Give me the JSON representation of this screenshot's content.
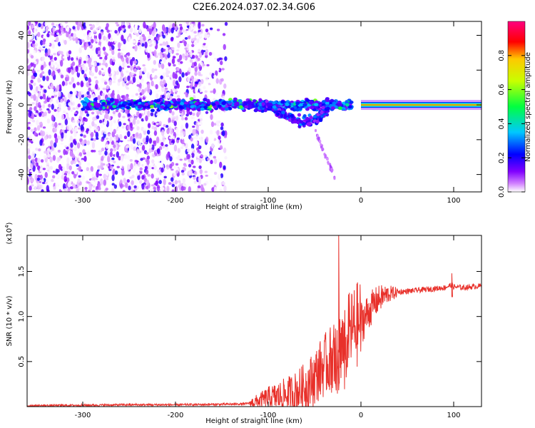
{
  "title": "C2E6.2024.037.02.34.G06",
  "colors": {
    "snr_line": "#e8302a",
    "axis": "#000000",
    "background": "#ffffff"
  },
  "chart_data": [
    {
      "type": "heatmap",
      "xlabel": "Height of straight line (km)",
      "ylabel": "Frequency (Hz)",
      "xlim": [
        -360,
        130
      ],
      "ylim": [
        -50,
        48
      ],
      "x_ticks": [
        -300,
        -200,
        -100,
        0,
        100
      ],
      "y_ticks": [
        -40,
        -20,
        0,
        20,
        40
      ],
      "colorbar": {
        "label": "Normalized spectral amplitude",
        "range": [
          0.0,
          1.0
        ],
        "ticks": [
          0.0,
          0.2,
          0.4,
          0.6,
          0.8
        ],
        "tick_labels": [
          "0.0",
          "0.2",
          "0.4",
          "0.6",
          "0.8"
        ],
        "colormap": [
          "#ffffff",
          "#d080ff",
          "#8000ff",
          "#0000ff",
          "#00c8ff",
          "#00ff40",
          "#c8ff00",
          "#ffc800",
          "#ff0000",
          "#ff0080"
        ]
      },
      "features": [
        {
          "x_range": [
            -360,
            -145
          ],
          "freq_range": [
            -50,
            48
          ],
          "amplitude": 0.1,
          "note": "scattered noise"
        },
        {
          "x_range": [
            -300,
            -10
          ],
          "freq_center": 0,
          "freq_halfwidth": 4,
          "amplitude": 0.35
        },
        {
          "x_range": [
            -110,
            -35
          ],
          "freq_center": -8,
          "freq_halfwidth": 7,
          "amplitude": 0.3
        },
        {
          "x_range": [
            -50,
            -28
          ],
          "freq_center": -30,
          "freq_halfwidth": 10,
          "amplitude": 0.15
        },
        {
          "x_range": [
            0,
            130
          ],
          "freq_center": 0,
          "freq_halfwidth": 1,
          "amplitude": 1.0
        }
      ]
    },
    {
      "type": "line",
      "xlabel": "Height of straight line (km)",
      "ylabel": "SNR (10 * v/v)",
      "y_multiplier": "(x10",
      "y_multiplier_exp": "4",
      "y_multiplier_close": ")",
      "xlim": [
        -360,
        130
      ],
      "ylim": [
        0.0,
        1.9
      ],
      "x_ticks": [
        -300,
        -200,
        -100,
        0,
        100
      ],
      "y_ticks": [
        0.5,
        1.0,
        1.5
      ],
      "y_tick_labels": [
        "0.5",
        "1.0",
        "1.5"
      ],
      "series": [
        {
          "x": [
            -360,
            -300,
            -250,
            -200,
            -150,
            -125,
            -110,
            -100,
            -90,
            -80,
            -70,
            -60,
            -50,
            -45,
            -40,
            -35,
            -30,
            -28,
            -25,
            -22,
            -20,
            -15,
            -10,
            -5,
            0,
            5,
            10,
            15,
            20,
            25,
            30,
            40,
            50,
            60,
            70,
            80,
            90,
            98,
            100,
            110,
            120,
            130
          ],
          "y": [
            0.01,
            0.015,
            0.02,
            0.02,
            0.025,
            0.03,
            0.06,
            0.1,
            0.11,
            0.13,
            0.16,
            0.22,
            0.32,
            0.4,
            0.45,
            0.5,
            0.55,
            0.6,
            0.65,
            0.7,
            0.75,
            0.8,
            0.85,
            0.9,
            0.93,
            1.0,
            1.08,
            1.15,
            1.2,
            1.23,
            1.25,
            1.27,
            1.28,
            1.29,
            1.3,
            1.31,
            1.32,
            1.35,
            1.33,
            1.32,
            1.33,
            1.34
          ]
        }
      ],
      "annotations": [
        {
          "x": -24,
          "y": 1.9,
          "label": "",
          "note": "sharp spike"
        },
        {
          "x": 98,
          "y": 1.48,
          "label": "",
          "note": "small spike"
        }
      ]
    }
  ]
}
